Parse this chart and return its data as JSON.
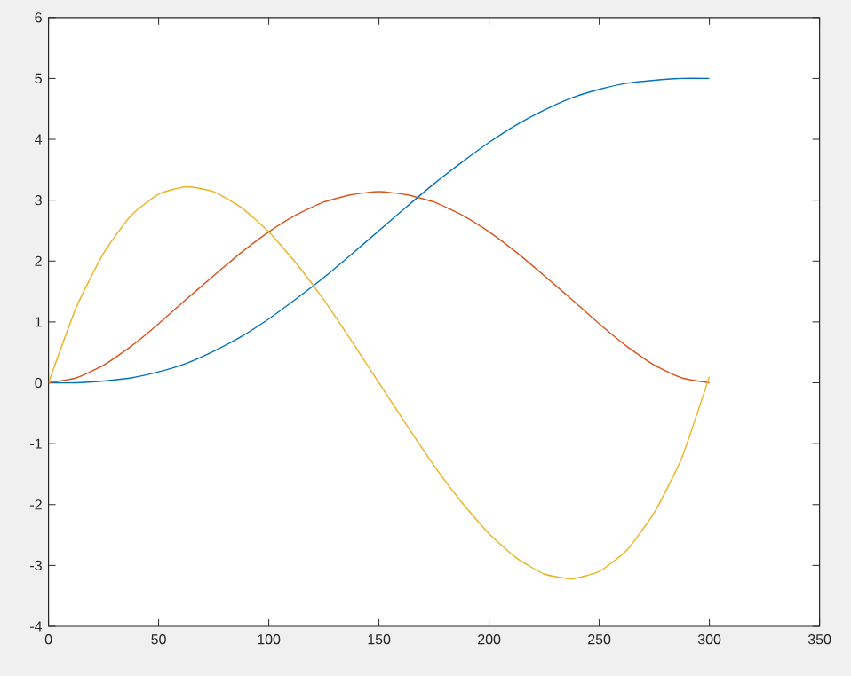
{
  "chart_data": {
    "type": "line",
    "x": [
      0,
      12.5,
      25,
      37.5,
      50,
      62.5,
      75,
      87.5,
      100,
      112.5,
      125,
      137.5,
      150,
      162.5,
      175,
      187.5,
      200,
      212.5,
      225,
      237.5,
      250,
      262.5,
      275,
      287.5,
      300
    ],
    "series": [
      {
        "color": "#0072bd",
        "values": [
          0,
          0.0,
          0.03,
          0.08,
          0.18,
          0.32,
          0.52,
          0.76,
          1.05,
          1.38,
          1.73,
          2.11,
          2.5,
          2.89,
          3.27,
          3.62,
          3.95,
          4.24,
          4.48,
          4.68,
          4.82,
          4.92,
          4.97,
          5.0,
          5.0
        ]
      },
      {
        "color": "#d95319",
        "values": [
          0,
          0.08,
          0.29,
          0.6,
          0.97,
          1.37,
          1.76,
          2.14,
          2.48,
          2.76,
          2.97,
          3.09,
          3.14,
          3.09,
          2.97,
          2.76,
          2.48,
          2.14,
          1.76,
          1.37,
          0.97,
          0.6,
          0.29,
          0.08,
          0
        ]
      },
      {
        "color": "#edb120",
        "values": [
          0,
          1.23,
          2.13,
          2.75,
          3.1,
          3.22,
          3.14,
          2.88,
          2.48,
          1.96,
          1.36,
          0.69,
          0,
          -0.69,
          -1.36,
          -1.96,
          -2.48,
          -2.88,
          -3.14,
          -3.22,
          -3.1,
          -2.75,
          -2.13,
          -1.23,
          0.1
        ]
      }
    ],
    "xlim": [
      0,
      350
    ],
    "ylim": [
      -4,
      6
    ],
    "xticks": [
      0,
      50,
      100,
      150,
      200,
      250,
      300,
      350
    ],
    "yticks": [
      -4,
      -3,
      -2,
      -1,
      0,
      1,
      2,
      3,
      4,
      5,
      6
    ],
    "grid": false
  }
}
